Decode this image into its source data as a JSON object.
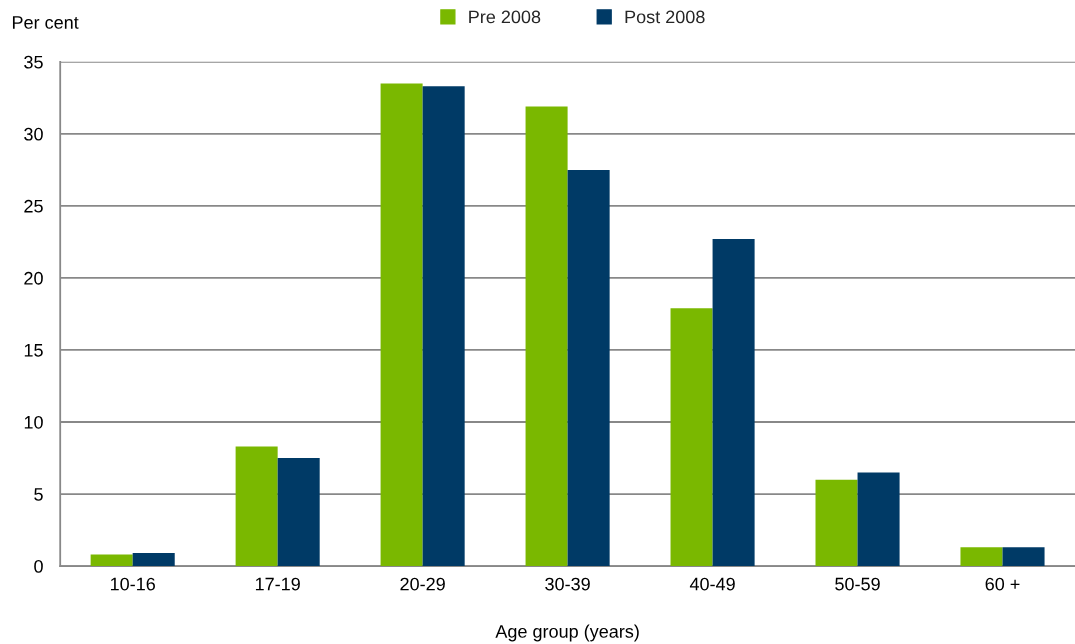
{
  "chart_data": {
    "type": "bar",
    "xlabel": "Age group (years)",
    "ylabel": "Per cent",
    "categories": [
      "10-16",
      "17-19",
      "20-29",
      "30-39",
      "40-49",
      "50-59",
      "60 +"
    ],
    "series": [
      {
        "name": "Pre 2008",
        "color": "#7ab800",
        "values": [
          0.8,
          8.3,
          33.5,
          31.9,
          17.9,
          6.0,
          1.3
        ]
      },
      {
        "name": "Post 2008",
        "color": "#003a66",
        "values": [
          0.9,
          7.5,
          33.3,
          27.5,
          22.7,
          6.5,
          1.3
        ]
      }
    ],
    "ylim": [
      0,
      35
    ],
    "yticks": [
      0,
      5,
      10,
      15,
      20,
      25,
      30,
      35
    ],
    "grid": "y",
    "legend": "top"
  }
}
